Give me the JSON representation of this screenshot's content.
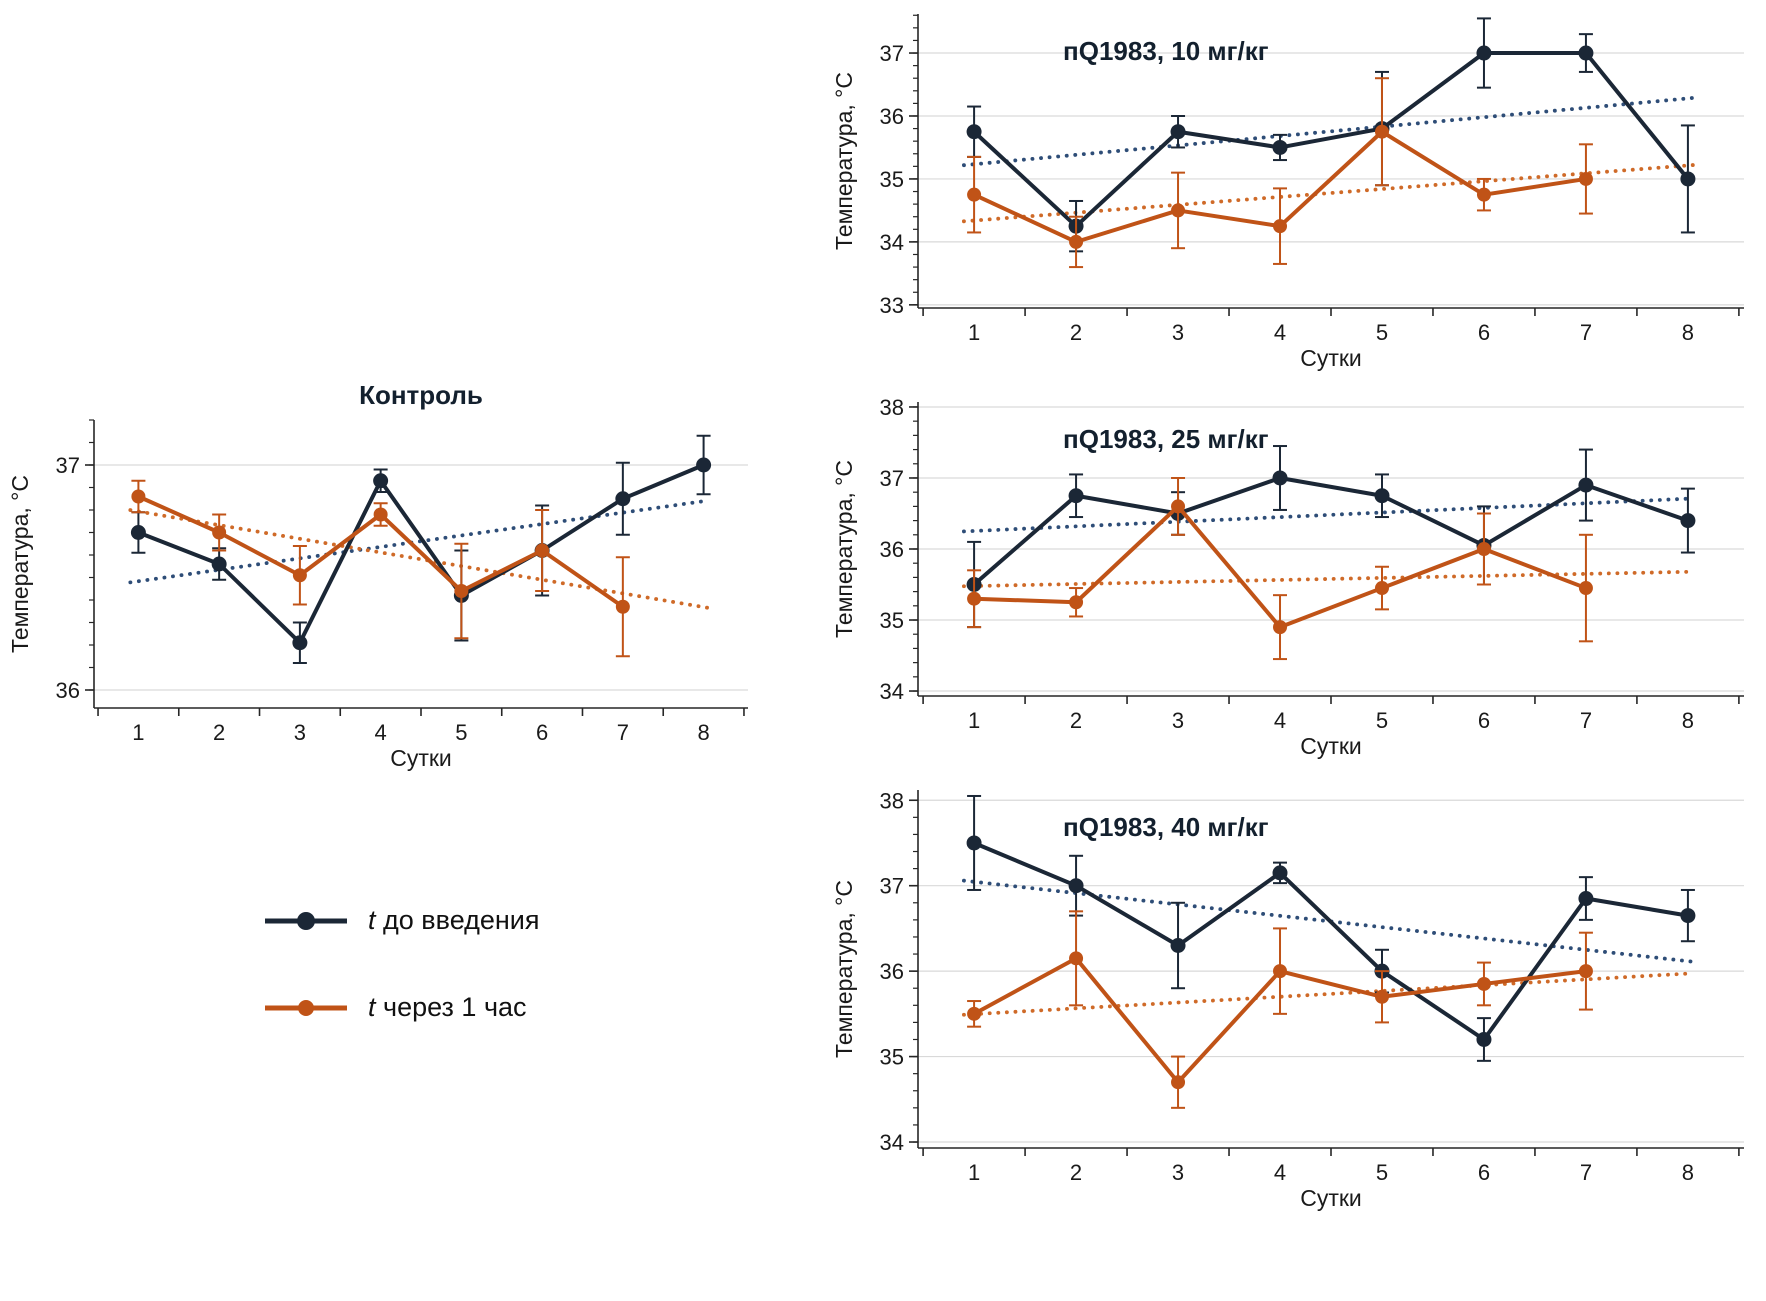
{
  "colors": {
    "dark": "#1b2736",
    "dark_trend": "#2e4d77",
    "orange": "#c05317",
    "orange_trend": "#cf6a28",
    "axis": "#262626",
    "grid": "#d9d9d9",
    "text": "#1a1a1a",
    "title": "#13202e"
  },
  "legend": {
    "items": [
      {
        "prefix": "t",
        "label": "до введения",
        "series": "dark"
      },
      {
        "prefix": "t",
        "label": "через 1 час",
        "series": "orange"
      }
    ]
  },
  "chart_data": [
    {
      "id": "control",
      "type": "line",
      "title": "Контроль",
      "title_placement": "above",
      "xlabel": "Сутки",
      "ylabel": "Температура, °C",
      "x": [
        1,
        2,
        3,
        4,
        5,
        6,
        7,
        8
      ],
      "xlim": [
        0.45,
        8.55
      ],
      "ylim": [
        35.92,
        37.2
      ],
      "yticks": [
        36,
        37
      ],
      "minor_step": 0.1,
      "grid": true,
      "series": [
        {
          "name": "t до введения",
          "color_key": "dark",
          "trend_color_key": "dark_trend",
          "trendline": true,
          "values": [
            36.7,
            36.56,
            36.21,
            36.93,
            36.42,
            36.62,
            36.85,
            37.0
          ],
          "errors": [
            0.09,
            0.07,
            0.09,
            0.05,
            0.2,
            0.2,
            0.16,
            0.13
          ]
        },
        {
          "name": "t через 1 час",
          "color_key": "orange",
          "trend_color_key": "orange_trend",
          "trendline": true,
          "values": [
            36.86,
            36.7,
            36.51,
            36.78,
            36.44,
            36.62,
            36.37,
            null
          ],
          "errors": [
            0.07,
            0.08,
            0.13,
            0.05,
            0.21,
            0.18,
            0.22,
            null
          ]
        }
      ]
    },
    {
      "id": "dose10",
      "type": "line",
      "title": "пQ1983, 10 мг/кг",
      "title_placement": "inside",
      "xlabel": "Сутки",
      "ylabel": "Температура, °C",
      "x": [
        1,
        2,
        3,
        4,
        5,
        6,
        7,
        8
      ],
      "xlim": [
        0.45,
        8.55
      ],
      "ylim": [
        32.95,
        37.62
      ],
      "yticks": [
        33,
        34,
        35,
        36,
        37
      ],
      "minor_step": 0.2,
      "grid": true,
      "series": [
        {
          "name": "t до введения",
          "color_key": "dark",
          "trend_color_key": "dark_trend",
          "trendline": true,
          "values": [
            35.75,
            34.25,
            35.75,
            35.5,
            35.8,
            37.0,
            37.0,
            35.0
          ],
          "errors": [
            0.4,
            0.4,
            0.25,
            0.2,
            0.9,
            0.55,
            0.3,
            0.85
          ]
        },
        {
          "name": "t через 1 час",
          "color_key": "orange",
          "trend_color_key": "orange_trend",
          "trendline": true,
          "values": [
            34.75,
            34.0,
            34.5,
            34.25,
            35.75,
            34.75,
            35.0,
            null
          ],
          "errors": [
            0.6,
            0.4,
            0.6,
            0.6,
            0.85,
            0.25,
            0.55,
            null
          ]
        }
      ]
    },
    {
      "id": "dose25",
      "type": "line",
      "title": "пQ1983, 25 мг/кг",
      "title_placement": "inside",
      "xlabel": "Сутки",
      "ylabel": "Температура, °C",
      "x": [
        1,
        2,
        3,
        4,
        5,
        6,
        7,
        8
      ],
      "xlim": [
        0.45,
        8.55
      ],
      "ylim": [
        33.93,
        38.07
      ],
      "yticks": [
        34,
        35,
        36,
        37,
        38
      ],
      "minor_step": 0.2,
      "grid": true,
      "series": [
        {
          "name": "t до введения",
          "color_key": "dark",
          "trend_color_key": "dark_trend",
          "trendline": true,
          "values": [
            35.5,
            36.75,
            36.5,
            37.0,
            36.75,
            36.05,
            36.9,
            36.4
          ],
          "errors": [
            0.6,
            0.3,
            0.3,
            0.45,
            0.3,
            0.55,
            0.5,
            0.45
          ]
        },
        {
          "name": "t через 1 час",
          "color_key": "orange",
          "trend_color_key": "orange_trend",
          "trendline": true,
          "values": [
            35.3,
            35.25,
            36.6,
            34.9,
            35.45,
            36.0,
            35.45,
            null
          ],
          "errors": [
            0.4,
            0.2,
            0.4,
            0.45,
            0.3,
            0.5,
            0.75,
            null
          ]
        }
      ]
    },
    {
      "id": "dose40",
      "type": "line",
      "title": "пQ1983, 40 мг/кг",
      "title_placement": "inside",
      "xlabel": "Сутки",
      "ylabel": "Температура, °C",
      "x": [
        1,
        2,
        3,
        4,
        5,
        6,
        7,
        8
      ],
      "xlim": [
        0.45,
        8.55
      ],
      "ylim": [
        33.93,
        38.12
      ],
      "yticks": [
        34,
        35,
        36,
        37,
        38
      ],
      "minor_step": 0.2,
      "grid": true,
      "series": [
        {
          "name": "t до введения",
          "color_key": "dark",
          "trend_color_key": "dark_trend",
          "trendline": true,
          "values": [
            37.5,
            37.0,
            36.3,
            37.15,
            36.0,
            35.2,
            36.85,
            36.65
          ],
          "errors": [
            0.55,
            0.35,
            0.5,
            0.12,
            0.25,
            0.25,
            0.25,
            0.3
          ]
        },
        {
          "name": "t через 1 час",
          "color_key": "orange",
          "trend_color_key": "orange_trend",
          "trendline": true,
          "values": [
            35.5,
            36.15,
            34.7,
            36.0,
            35.7,
            35.85,
            36.0,
            null
          ],
          "errors": [
            0.15,
            0.55,
            0.3,
            0.5,
            0.3,
            0.25,
            0.45,
            null
          ]
        }
      ]
    }
  ]
}
